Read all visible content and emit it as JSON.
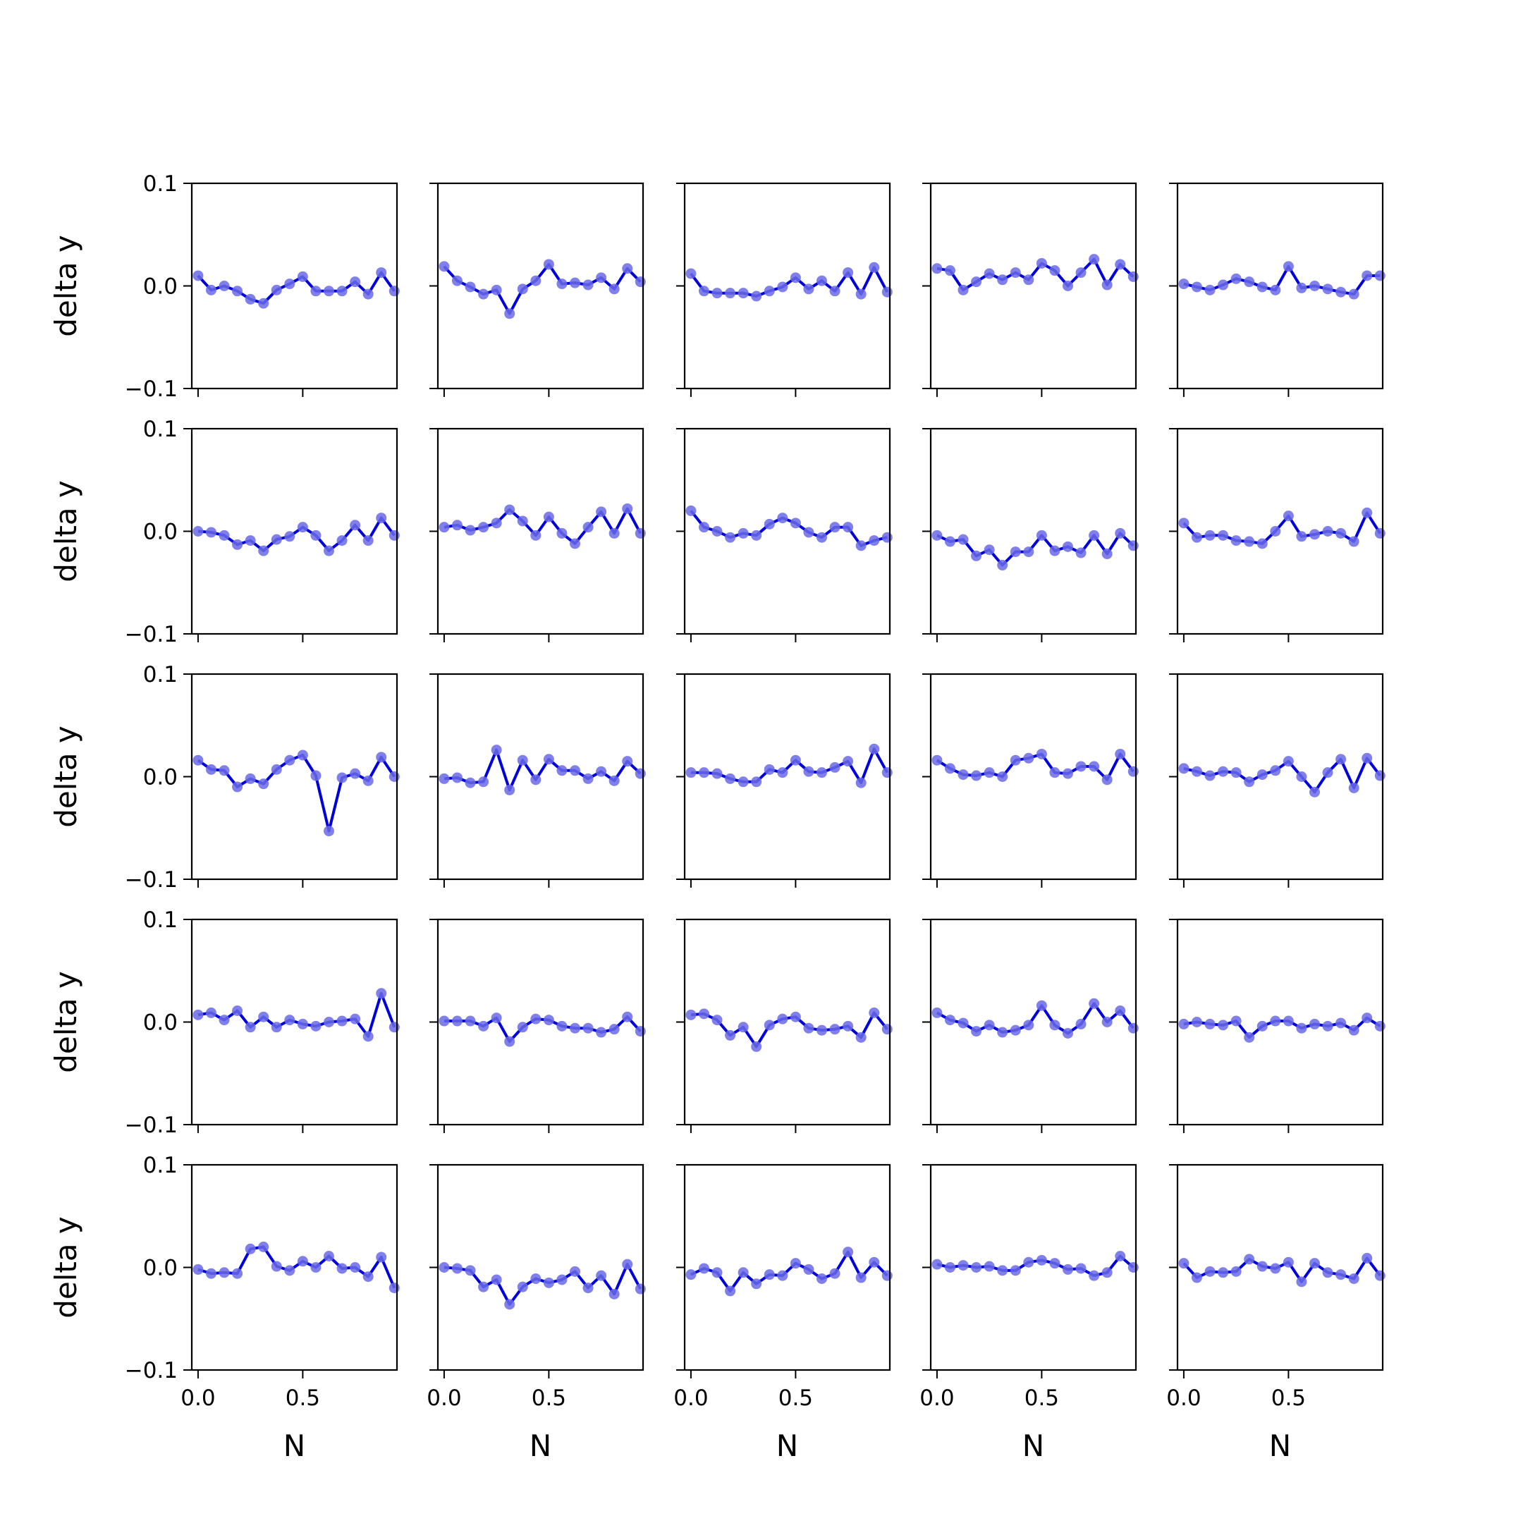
{
  "chart_data": {
    "type": "line",
    "layout": {
      "rows": 5,
      "cols": 5
    },
    "xlabel": "N",
    "ylabel": "delta y",
    "xlim": [
      -0.03,
      0.95
    ],
    "ylim": [
      -0.1,
      0.1
    ],
    "xticks": [
      0.0,
      0.5
    ],
    "xtick_labels": [
      "0.0",
      "0.5"
    ],
    "yticks": [
      -0.1,
      0.0,
      0.1
    ],
    "ytick_labels": [
      "−0.1",
      "0.0",
      "0.1"
    ],
    "line_color": "#0000dd",
    "marker_color": "#6a6ae6",
    "grid": false,
    "x": [
      0.0,
      0.0625,
      0.125,
      0.1875,
      0.25,
      0.3125,
      0.375,
      0.4375,
      0.5,
      0.5625,
      0.625,
      0.6875,
      0.75,
      0.8125,
      0.875,
      0.9375
    ],
    "panels": [
      {
        "values": [
          0.01,
          -0.004,
          0.0,
          -0.005,
          -0.013,
          -0.017,
          -0.004,
          0.002,
          0.009,
          -0.005,
          -0.005,
          -0.005,
          0.004,
          -0.008,
          0.013,
          -0.005
        ]
      },
      {
        "values": [
          0.019,
          0.005,
          -0.001,
          -0.008,
          -0.004,
          -0.027,
          -0.003,
          0.005,
          0.021,
          0.002,
          0.003,
          0.001,
          0.008,
          -0.003,
          0.017,
          0.004
        ]
      },
      {
        "values": [
          0.012,
          -0.005,
          -0.007,
          -0.007,
          -0.007,
          -0.01,
          -0.005,
          -0.001,
          0.008,
          -0.003,
          0.005,
          -0.005,
          0.013,
          -0.008,
          0.018,
          -0.006
        ]
      },
      {
        "values": [
          0.017,
          0.015,
          -0.004,
          0.004,
          0.012,
          0.006,
          0.013,
          0.006,
          0.022,
          0.015,
          0.0,
          0.013,
          0.026,
          0.001,
          0.021,
          0.009
        ]
      },
      {
        "values": [
          0.002,
          -0.001,
          -0.004,
          0.001,
          0.007,
          0.004,
          -0.001,
          -0.004,
          0.019,
          -0.002,
          0.0,
          -0.003,
          -0.006,
          -0.008,
          0.01,
          0.01
        ]
      },
      {
        "values": [
          0.0,
          -0.001,
          -0.004,
          -0.013,
          -0.009,
          -0.019,
          -0.008,
          -0.005,
          0.004,
          -0.004,
          -0.019,
          -0.009,
          0.006,
          -0.009,
          0.013,
          -0.004
        ]
      },
      {
        "values": [
          0.004,
          0.006,
          0.001,
          0.004,
          0.008,
          0.021,
          0.01,
          -0.004,
          0.014,
          -0.002,
          -0.012,
          0.004,
          0.019,
          -0.002,
          0.022,
          -0.002
        ]
      },
      {
        "values": [
          0.02,
          0.004,
          0.0,
          -0.006,
          -0.002,
          -0.004,
          0.007,
          0.013,
          0.008,
          -0.001,
          -0.006,
          0.004,
          0.004,
          -0.014,
          -0.009,
          -0.006
        ]
      },
      {
        "values": [
          -0.004,
          -0.01,
          -0.008,
          -0.024,
          -0.018,
          -0.033,
          -0.02,
          -0.02,
          -0.004,
          -0.019,
          -0.015,
          -0.021,
          -0.004,
          -0.022,
          -0.002,
          -0.014
        ]
      },
      {
        "values": [
          0.008,
          -0.006,
          -0.004,
          -0.004,
          -0.009,
          -0.01,
          -0.012,
          0.0,
          0.015,
          -0.005,
          -0.003,
          0.0,
          -0.002,
          -0.01,
          0.018,
          -0.002
        ]
      },
      {
        "values": [
          0.016,
          0.007,
          0.006,
          -0.01,
          -0.002,
          -0.007,
          0.007,
          0.016,
          0.021,
          0.001,
          -0.053,
          -0.001,
          0.003,
          -0.004,
          0.019,
          0.0
        ]
      },
      {
        "values": [
          -0.002,
          -0.001,
          -0.006,
          -0.005,
          0.026,
          -0.013,
          0.016,
          -0.003,
          0.017,
          0.006,
          0.006,
          -0.002,
          0.005,
          -0.004,
          0.015,
          0.003
        ]
      },
      {
        "values": [
          0.004,
          0.004,
          0.003,
          -0.002,
          -0.005,
          -0.005,
          0.007,
          0.004,
          0.016,
          0.005,
          0.004,
          0.009,
          0.015,
          -0.006,
          0.027,
          0.004
        ]
      },
      {
        "values": [
          0.016,
          0.008,
          0.002,
          0.001,
          0.004,
          0.0,
          0.016,
          0.018,
          0.022,
          0.004,
          0.003,
          0.01,
          0.01,
          -0.003,
          0.022,
          0.005
        ]
      },
      {
        "values": [
          0.008,
          0.005,
          0.001,
          0.005,
          0.004,
          -0.005,
          0.002,
          0.006,
          0.015,
          0.0,
          -0.015,
          0.004,
          0.017,
          -0.011,
          0.018,
          0.001
        ]
      },
      {
        "values": [
          0.007,
          0.009,
          0.002,
          0.011,
          -0.005,
          0.005,
          -0.005,
          0.002,
          -0.002,
          -0.004,
          0.0,
          0.001,
          0.003,
          -0.014,
          0.028,
          -0.005
        ]
      },
      {
        "values": [
          0.001,
          0.001,
          0.001,
          -0.004,
          0.004,
          -0.019,
          -0.005,
          0.003,
          0.002,
          -0.004,
          -0.006,
          -0.006,
          -0.01,
          -0.007,
          0.005,
          -0.009
        ]
      },
      {
        "values": [
          0.007,
          0.008,
          0.002,
          -0.013,
          -0.005,
          -0.024,
          -0.003,
          0.003,
          0.005,
          -0.006,
          -0.008,
          -0.007,
          -0.004,
          -0.015,
          0.009,
          -0.007
        ]
      },
      {
        "values": [
          0.009,
          0.002,
          -0.001,
          -0.009,
          -0.003,
          -0.01,
          -0.008,
          -0.003,
          0.016,
          -0.003,
          -0.011,
          -0.002,
          0.018,
          0.0,
          0.011,
          -0.006
        ]
      },
      {
        "values": [
          -0.002,
          0.0,
          -0.002,
          -0.003,
          0.001,
          -0.015,
          -0.004,
          0.001,
          0.001,
          -0.006,
          -0.002,
          -0.004,
          -0.001,
          -0.008,
          0.004,
          -0.004
        ]
      },
      {
        "values": [
          -0.002,
          -0.006,
          -0.005,
          -0.006,
          0.018,
          0.02,
          0.001,
          -0.003,
          0.006,
          0.0,
          0.011,
          -0.001,
          0.0,
          -0.009,
          0.01,
          -0.02
        ]
      },
      {
        "values": [
          0.0,
          -0.001,
          -0.003,
          -0.019,
          -0.012,
          -0.036,
          -0.019,
          -0.011,
          -0.015,
          -0.012,
          -0.004,
          -0.02,
          -0.008,
          -0.026,
          0.003,
          -0.021
        ]
      },
      {
        "values": [
          -0.007,
          -0.001,
          -0.005,
          -0.023,
          -0.005,
          -0.016,
          -0.007,
          -0.008,
          0.004,
          -0.002,
          -0.011,
          -0.006,
          0.015,
          -0.01,
          0.005,
          -0.008
        ]
      },
      {
        "values": [
          0.003,
          0.0,
          0.002,
          0.0,
          0.001,
          -0.003,
          -0.003,
          0.005,
          0.007,
          0.004,
          -0.002,
          -0.001,
          -0.008,
          -0.005,
          0.011,
          0.0
        ]
      },
      {
        "values": [
          0.004,
          -0.01,
          -0.004,
          -0.005,
          -0.004,
          0.008,
          0.001,
          -0.001,
          0.005,
          -0.014,
          0.004,
          -0.005,
          -0.007,
          -0.011,
          0.009,
          -0.008
        ]
      }
    ]
  }
}
